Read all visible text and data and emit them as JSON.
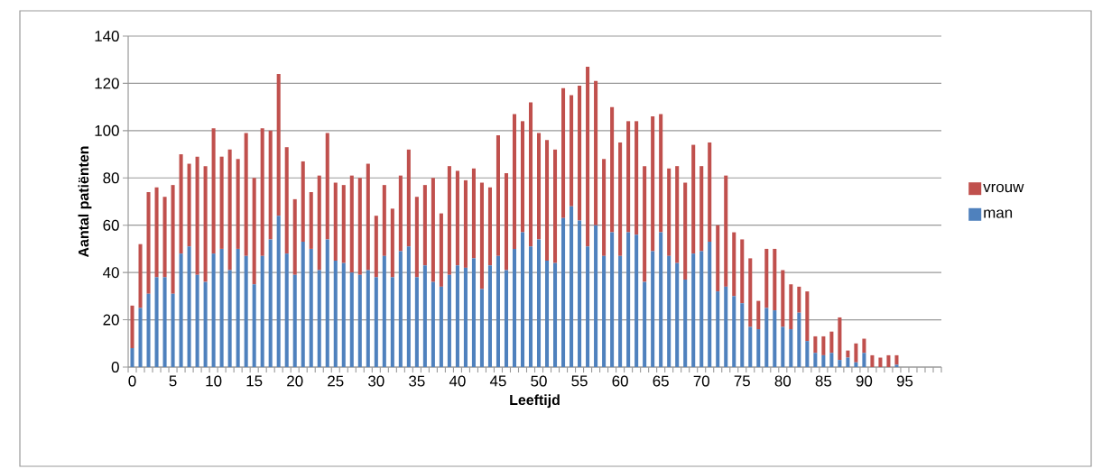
{
  "chart_data": {
    "type": "bar",
    "stacked": true,
    "xlabel": "Leeftijd",
    "ylabel": "Aantal patiënten",
    "categories": [
      "0",
      null,
      null,
      null,
      null,
      "5",
      null,
      null,
      null,
      null,
      "10",
      null,
      null,
      null,
      null,
      "15",
      null,
      null,
      null,
      null,
      "20",
      null,
      null,
      null,
      null,
      "25",
      null,
      null,
      null,
      null,
      "30",
      null,
      null,
      null,
      null,
      "35",
      null,
      null,
      null,
      null,
      "40",
      null,
      null,
      null,
      null,
      "45",
      null,
      null,
      null,
      null,
      "50",
      null,
      null,
      null,
      null,
      "55",
      null,
      null,
      null,
      null,
      "60",
      null,
      null,
      null,
      null,
      "65",
      null,
      null,
      null,
      null,
      "70",
      null,
      null,
      null,
      null,
      "75",
      null,
      null,
      null,
      null,
      "80",
      null,
      null,
      null,
      null,
      "85",
      null,
      null,
      null,
      null,
      "90",
      null,
      null,
      null,
      null,
      "95",
      null,
      null,
      null,
      null
    ],
    "series": [
      {
        "name": "man",
        "color": "#4f81bd",
        "values": [
          8,
          25,
          31,
          38,
          38,
          31,
          48,
          51,
          39,
          36,
          48,
          50,
          41,
          50,
          47,
          35,
          47,
          54,
          64,
          48,
          39,
          53,
          50,
          41,
          54,
          45,
          44,
          40,
          39,
          41,
          38,
          47,
          38,
          49,
          51,
          38,
          43,
          36,
          34,
          39,
          43,
          42,
          46,
          33,
          43,
          47,
          41,
          50,
          57,
          51,
          54,
          45,
          44,
          63,
          68,
          62,
          51,
          60,
          47,
          57,
          47,
          57,
          56,
          36,
          49,
          57,
          47,
          44,
          37,
          48,
          49,
          53,
          32,
          34,
          30,
          27,
          17,
          16,
          25,
          24,
          17,
          16,
          23,
          11,
          6,
          5,
          6,
          3,
          4,
          2,
          6,
          0,
          0,
          0,
          1,
          0,
          0,
          0,
          0,
          0
        ]
      },
      {
        "name": "vrouw",
        "color": "#c0504d",
        "values": [
          18,
          27,
          43,
          38,
          34,
          46,
          42,
          35,
          50,
          49,
          53,
          39,
          51,
          38,
          52,
          45,
          54,
          46,
          60,
          45,
          32,
          34,
          24,
          40,
          45,
          33,
          33,
          41,
          41,
          45,
          26,
          30,
          29,
          32,
          41,
          34,
          34,
          44,
          31,
          46,
          40,
          37,
          38,
          45,
          33,
          51,
          41,
          57,
          47,
          61,
          45,
          51,
          48,
          55,
          47,
          57,
          76,
          61,
          41,
          53,
          48,
          47,
          48,
          49,
          57,
          50,
          37,
          41,
          41,
          46,
          36,
          42,
          28,
          47,
          27,
          27,
          29,
          12,
          25,
          26,
          24,
          19,
          11,
          21,
          7,
          8,
          9,
          18,
          3,
          8,
          6,
          5,
          4,
          5,
          4,
          0,
          0,
          0,
          0,
          0
        ]
      }
    ],
    "ylim": [
      0,
      140
    ],
    "yticks": [
      0,
      20,
      40,
      60,
      80,
      100,
      120,
      140
    ],
    "grid": "y",
    "legend": "right"
  }
}
